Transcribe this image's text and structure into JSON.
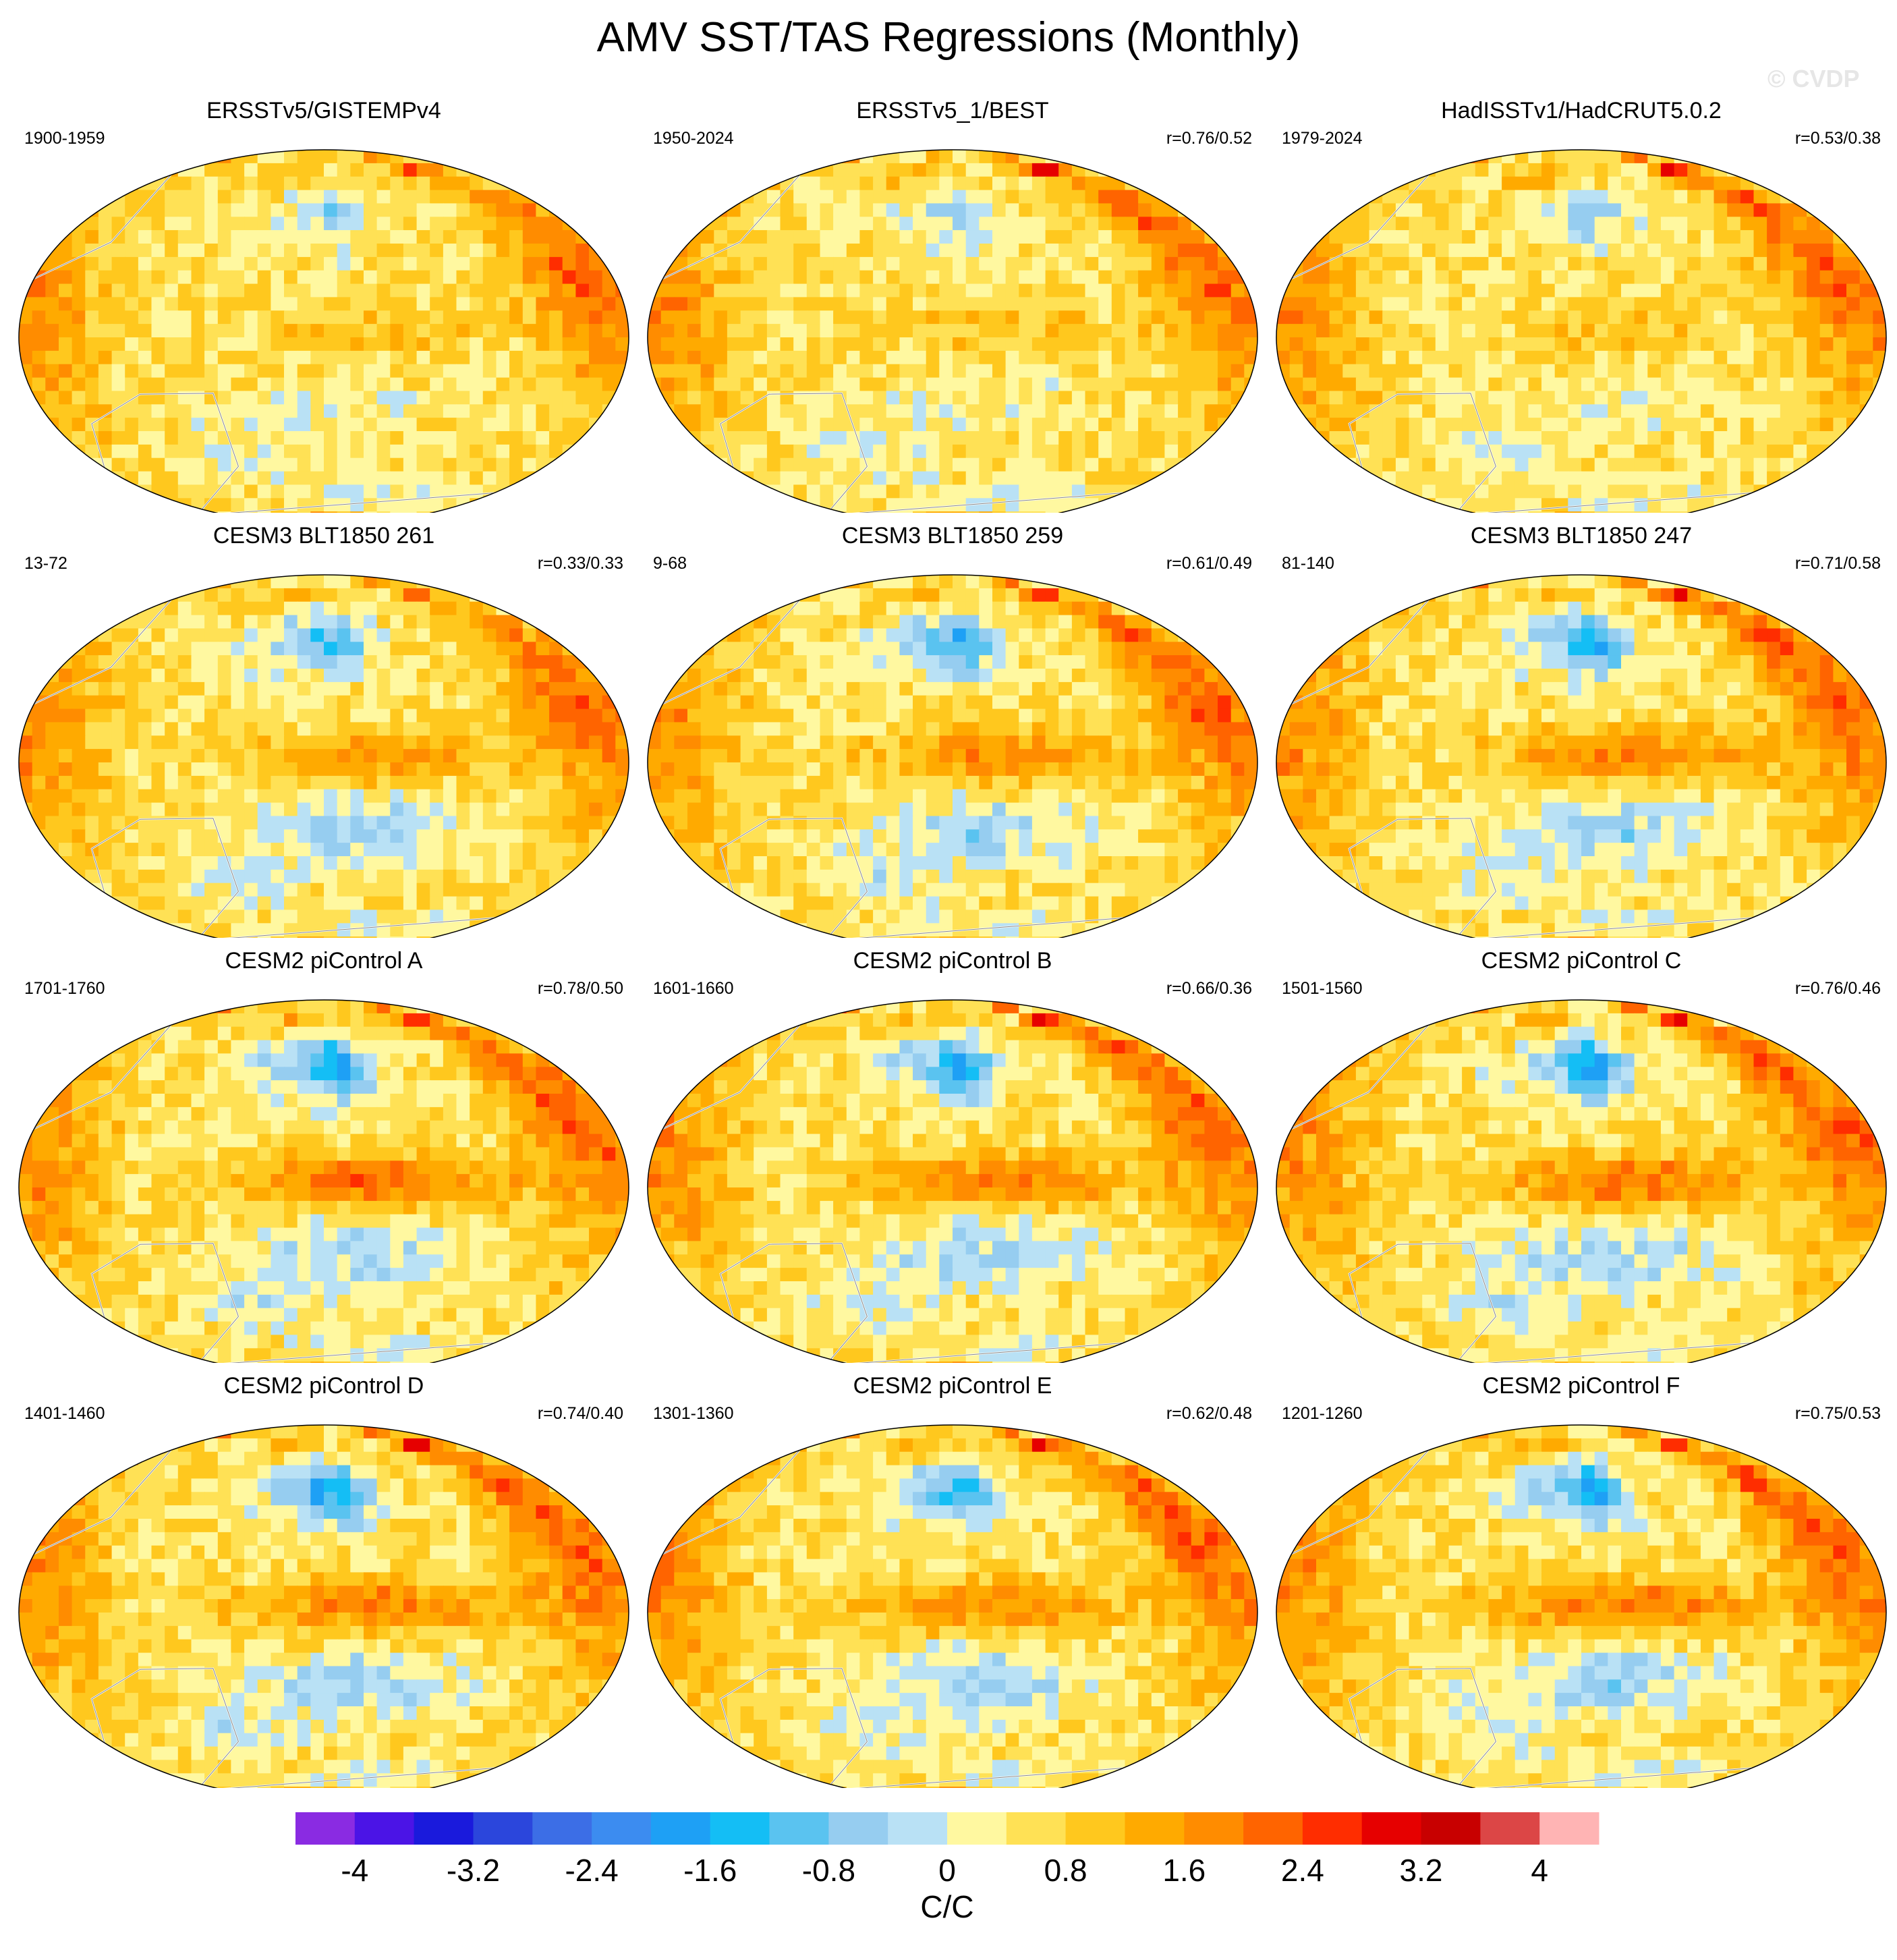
{
  "figure": {
    "title": "AMV SST/TAS Regressions (Monthly)",
    "watermark": "© CVDP"
  },
  "panels": [
    {
      "title": "ERSSTv5/GISTEMPv4",
      "period": "1900-1959",
      "corr": "",
      "pattern": "obs",
      "seed": 3,
      "strength": 0.8
    },
    {
      "title": "ERSSTv5_1/BEST",
      "period": "1950-2024",
      "corr": "r=0.76/0.52",
      "pattern": "obs",
      "seed": 7,
      "strength": 1.0
    },
    {
      "title": "HadISSTv1/HadCRUT5.0.2",
      "period": "1979-2024",
      "corr": "r=0.53/0.38",
      "pattern": "obs",
      "seed": 11,
      "strength": 1.0
    },
    {
      "title": "CESM3 BLT1850 261",
      "period": "13-72",
      "corr": "r=0.33/0.33",
      "pattern": "model",
      "seed": 13,
      "strength": 0.75
    },
    {
      "title": "CESM3 BLT1850 259",
      "period": "9-68",
      "corr": "r=0.61/0.49",
      "pattern": "model",
      "seed": 17,
      "strength": 0.95
    },
    {
      "title": "CESM3 BLT1850 247",
      "period": "81-140",
      "corr": "r=0.71/0.58",
      "pattern": "model",
      "seed": 19,
      "strength": 1.05
    },
    {
      "title": "CESM2 piControl A",
      "period": "1701-1760",
      "corr": "r=0.78/0.50",
      "pattern": "model",
      "seed": 23,
      "strength": 1.15
    },
    {
      "title": "CESM2 piControl B",
      "period": "1601-1660",
      "corr": "r=0.66/0.36",
      "pattern": "model",
      "seed": 29,
      "strength": 1.05
    },
    {
      "title": "CESM2 piControl C",
      "period": "1501-1560",
      "corr": "r=0.76/0.46",
      "pattern": "model",
      "seed": 31,
      "strength": 1.15
    },
    {
      "title": "CESM2 piControl D",
      "period": "1401-1460",
      "corr": "r=0.74/0.40",
      "pattern": "model",
      "seed": 37,
      "strength": 1.1
    },
    {
      "title": "CESM2 piControl E",
      "period": "1301-1360",
      "corr": "r=0.62/0.48",
      "pattern": "model",
      "seed": 41,
      "strength": 1.0
    },
    {
      "title": "CESM2 piControl F",
      "period": "1201-1260",
      "corr": "r=0.75/0.53",
      "pattern": "model",
      "seed": 43,
      "strength": 1.1
    }
  ],
  "colorbar": {
    "label": "C/C",
    "tick_labels": [
      "-4",
      "-3.2",
      "-2.4",
      "-1.6",
      "-0.8",
      "0",
      "0.8",
      "1.6",
      "2.4",
      "3.2",
      "4"
    ],
    "colors": [
      "#8a2be2",
      "#4b14e6",
      "#1a1adc",
      "#2b46dc",
      "#3c6ee6",
      "#3c8cf0",
      "#1ea0f5",
      "#14bef5",
      "#5ac3f0",
      "#96cdf0",
      "#b9e1f5",
      "#fff8a0",
      "#ffe155",
      "#ffc81e",
      "#ffaa00",
      "#ff8c00",
      "#ff6400",
      "#ff2d00",
      "#e60000",
      "#c80000",
      "#dc4646",
      "#ffb4b4"
    ]
  }
}
